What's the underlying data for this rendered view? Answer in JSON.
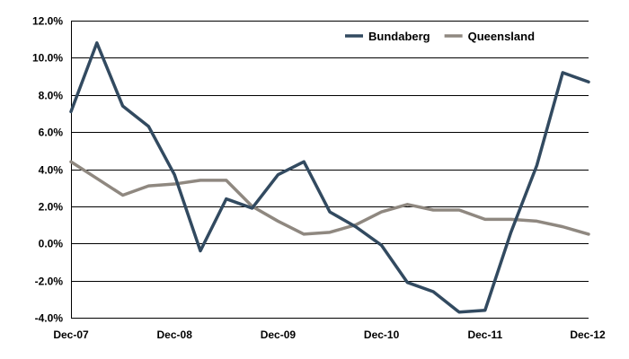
{
  "chart_data": {
    "type": "line",
    "title": "",
    "xlabel": "",
    "ylabel": "",
    "ylim": [
      -4,
      12
    ],
    "y_tick_step": 2,
    "y_tick_labels": [
      "-4.0%",
      "-2.0%",
      "0.0%",
      "2.0%",
      "4.0%",
      "6.0%",
      "8.0%",
      "10.0%",
      "12.0%"
    ],
    "x_tick_labels": [
      "Dec-07",
      "Dec-08",
      "Dec-09",
      "Dec-10",
      "Dec-11",
      "Dec-12"
    ],
    "quarters_per_year": 4,
    "grid": true,
    "legend_position": "top-right",
    "series": [
      {
        "name": "Bundaberg",
        "color": "#324a60",
        "values": [
          7.1,
          10.8,
          7.4,
          6.3,
          3.7,
          -0.4,
          2.4,
          1.9,
          3.7,
          4.4,
          1.7,
          0.9,
          -0.1,
          -2.1,
          -2.6,
          -3.7,
          -3.6,
          0.6,
          4.2,
          9.2,
          8.7
        ]
      },
      {
        "name": "Queensland",
        "color": "#8f8880",
        "values": [
          4.4,
          3.5,
          2.6,
          3.1,
          3.2,
          3.4,
          3.4,
          2.0,
          1.2,
          0.5,
          0.6,
          1.0,
          1.7,
          2.1,
          1.8,
          1.8,
          1.3,
          1.3,
          1.2,
          0.9,
          0.5
        ]
      }
    ]
  }
}
